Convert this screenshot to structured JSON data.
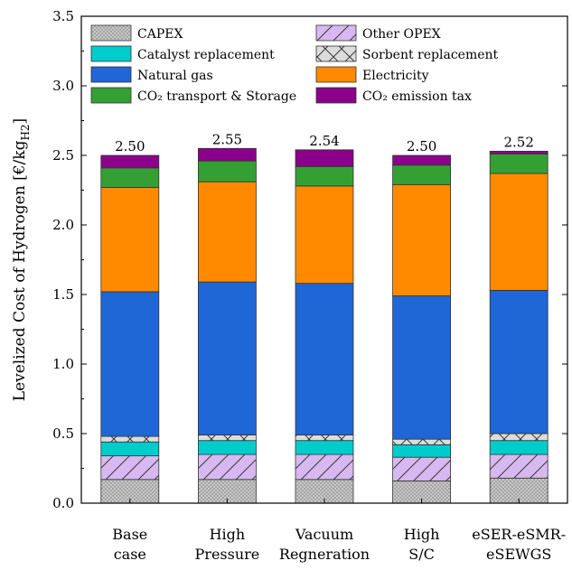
{
  "chart_data": {
    "type": "bar",
    "stacked": true,
    "ylabel": "Levelized Cost of Hydrogen [€/kg",
    "ylabel_sub": "H2",
    "ylabel_suffix": "]",
    "ylim": [
      0,
      3.5
    ],
    "yticks": [
      "0.0",
      "0.5",
      "1.0",
      "1.5",
      "2.0",
      "2.5",
      "3.0",
      "3.5"
    ],
    "grid": false,
    "legend_position": "top",
    "categories": [
      [
        "Base",
        "case"
      ],
      [
        "High",
        "Pressure"
      ],
      [
        "Vacuum",
        "Regneration"
      ],
      [
        "High",
        "S/C"
      ],
      [
        "eSER-eSMR-",
        "eSEWGS"
      ]
    ],
    "totals": [
      "2.50",
      "2.55",
      "2.54",
      "2.50",
      "2.52"
    ],
    "series": [
      {
        "name": "CAPEX",
        "color": "#c8c8c8",
        "pattern": "dots",
        "values": [
          0.17,
          0.17,
          0.17,
          0.16,
          0.18
        ]
      },
      {
        "name": "Other OPEX",
        "color": "#d8b8f0",
        "pattern": "diagonal",
        "values": [
          0.17,
          0.18,
          0.18,
          0.17,
          0.17
        ]
      },
      {
        "name": "Catalyst replacement",
        "color": "#00cccc",
        "pattern": "none",
        "values": [
          0.1,
          0.1,
          0.1,
          0.09,
          0.1
        ]
      },
      {
        "name": "Sorbent replacement",
        "color": "#d9d9d9",
        "pattern": "cross",
        "values": [
          0.04,
          0.04,
          0.04,
          0.04,
          0.05
        ]
      },
      {
        "name": "Natural gas",
        "color": "#1f66d6",
        "pattern": "none",
        "values": [
          1.04,
          1.1,
          1.09,
          1.03,
          1.03
        ]
      },
      {
        "name": "Electricity",
        "color": "#ff8a00",
        "pattern": "none",
        "values": [
          0.75,
          0.72,
          0.7,
          0.8,
          0.84
        ]
      },
      {
        "name": "CO₂ transport & Storage",
        "color": "#34a034",
        "pattern": "none",
        "values": [
          0.14,
          0.15,
          0.14,
          0.14,
          0.14
        ]
      },
      {
        "name": "CO₂ emission tax",
        "color": "#8b008b",
        "pattern": "none",
        "values": [
          0.09,
          0.09,
          0.12,
          0.07,
          0.02
        ]
      }
    ],
    "legend_order": [
      0,
      1,
      2,
      3,
      4,
      5,
      6,
      7
    ]
  }
}
